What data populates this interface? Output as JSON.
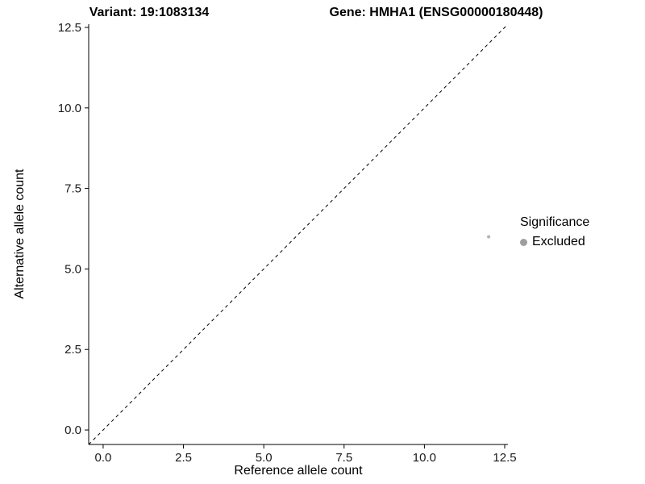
{
  "titles": {
    "variant": "Variant: 19:1083134",
    "gene": "Gene: HMHA1 (ENSG00000180448)"
  },
  "chart_data": {
    "type": "scatter",
    "title": "Variant: 19:1083134 | Gene: HMHA1 (ENSG00000180448)",
    "xlabel": "Reference allele count",
    "ylabel": "Alternative allele count",
    "xlim": [
      -0.45,
      12.6
    ],
    "ylim": [
      -0.45,
      12.6
    ],
    "grid": false,
    "xticks": [
      {
        "value": 0.0,
        "label": "0.0"
      },
      {
        "value": 2.5,
        "label": "2.5"
      },
      {
        "value": 5.0,
        "label": "5.0"
      },
      {
        "value": 7.5,
        "label": "7.5"
      },
      {
        "value": 10.0,
        "label": "10.0"
      },
      {
        "value": 12.5,
        "label": "12.5"
      }
    ],
    "yticks": [
      {
        "value": 0.0,
        "label": "0.0"
      },
      {
        "value": 2.5,
        "label": "2.5"
      },
      {
        "value": 5.0,
        "label": "5.0"
      },
      {
        "value": 7.5,
        "label": "7.5"
      },
      {
        "value": 10.0,
        "label": "10.0"
      },
      {
        "value": 12.5,
        "label": "12.5"
      }
    ],
    "series": [
      {
        "name": "Excluded",
        "color": "#b3b3b3",
        "points": [
          {
            "x": 12,
            "y": 6
          }
        ]
      }
    ],
    "identity_line": {
      "style": "dashed",
      "color": "#000000",
      "from": [
        -0.45,
        -0.45
      ],
      "to": [
        12.6,
        12.6
      ]
    },
    "legend": {
      "title": "Significance",
      "position": "right",
      "entries": [
        {
          "label": "Excluded",
          "color": "#9e9e9e"
        }
      ]
    }
  },
  "colors": {
    "background": "#ffffff",
    "axis": "#000000",
    "tick_text": "#1a1a1a"
  }
}
